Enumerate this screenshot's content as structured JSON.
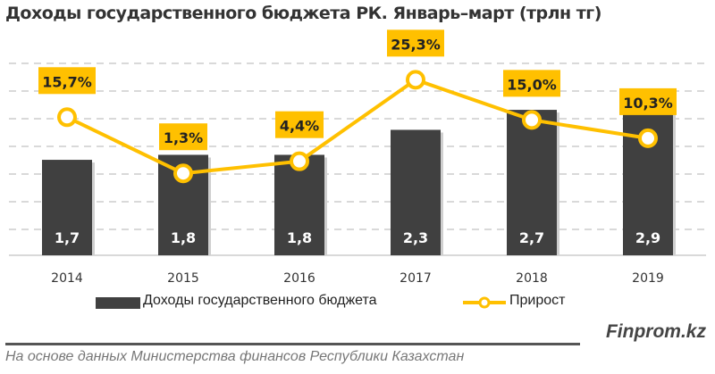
{
  "chart_data": {
    "type": "bar+line",
    "title": "Доходы государственного бюджета РК. Январь–март (трлн тг)",
    "categories": [
      "2014",
      "2015",
      "2016",
      "2017",
      "2018",
      "2019"
    ],
    "series": [
      {
        "name": "Доходы государственного бюджета",
        "type": "bar",
        "values": [
          1.7,
          1.8,
          1.8,
          2.3,
          2.7,
          2.9
        ],
        "labels": [
          "1,7",
          "1,8",
          "1,8",
          "2,3",
          "2,7",
          "2,9"
        ],
        "color": "#404040",
        "axis": "primary"
      },
      {
        "name": "Прирост",
        "type": "line",
        "values": [
          15.7,
          1.3,
          4.4,
          25.3,
          15.0,
          10.3
        ],
        "labels": [
          "15,7%",
          "1,3%",
          "4,4%",
          "25,3%",
          "15,0%",
          "10,3%"
        ],
        "color": "#FFC000",
        "axis": "secondary"
      }
    ],
    "ylim": [
      -0.21,
      3.63
    ],
    "y2lim": [
      -19.7,
      29.5
    ],
    "grid": true,
    "legend": "bottom"
  },
  "footer": {
    "brand": "Finprom.kz",
    "source": "На основе данных  Министерства финансов  Республики Казахстан"
  }
}
